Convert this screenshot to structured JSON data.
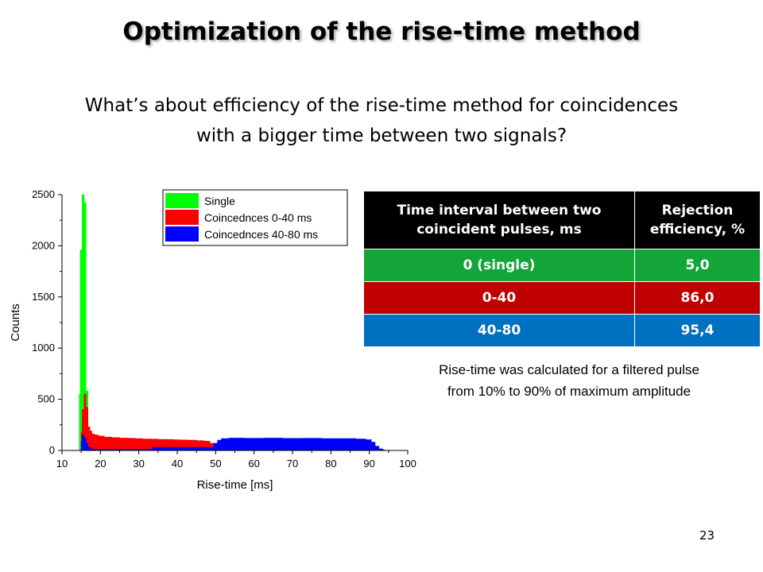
{
  "title": "Optimization of the rise-time method",
  "question": {
    "line1": "What’s about efficiency of the rise-time method for coincidences",
    "line2": "with a bigger time between two signals?"
  },
  "table": {
    "header": [
      "Time interval between two coincident pulses, ms",
      "Rejection efficiency, %"
    ],
    "rows": [
      {
        "interval": "0 (single)",
        "efficiency": "5,0",
        "color": "#13a538"
      },
      {
        "interval": "0-40",
        "efficiency": "86,0",
        "color": "#c00000"
      },
      {
        "interval": "40-80",
        "efficiency": "95,4",
        "color": "#0070c0"
      }
    ]
  },
  "note": {
    "line1": "Rise-time was calculated for a filtered pulse",
    "line2": "from 10% to 90% of maximum amplitude"
  },
  "page_number": "23",
  "chart_data": {
    "type": "bar",
    "xlabel": "Rise-time [ms]",
    "ylabel": "Counts",
    "xlim": [
      10,
      100
    ],
    "ylim": [
      0,
      2500
    ],
    "xticks": [
      10,
      20,
      30,
      40,
      50,
      60,
      70,
      80,
      90,
      100
    ],
    "yticks": [
      0,
      500,
      1000,
      1500,
      2000,
      2500
    ],
    "grid": false,
    "legend": "top-right",
    "series": [
      {
        "name": "Single",
        "color": "#00ff00",
        "x": [
          14.5,
          15,
          15.5,
          16,
          16.5,
          17,
          17.5
        ],
        "values": [
          550,
          1960,
          2500,
          2420,
          580,
          130,
          20
        ]
      },
      {
        "name": "Coincednces 0-40 ms",
        "color": "#ff0000",
        "x": [
          15,
          15.5,
          16,
          16.5,
          17,
          17.5,
          18,
          19,
          20,
          22,
          24,
          26,
          28,
          30,
          32,
          34,
          36,
          38,
          40,
          42,
          44,
          46,
          48,
          49,
          50,
          51
        ],
        "values": [
          180,
          400,
          550,
          420,
          230,
          190,
          160,
          150,
          140,
          130,
          125,
          120,
          118,
          115,
          112,
          110,
          108,
          106,
          104,
          102,
          100,
          95,
          90,
          70,
          30,
          10
        ]
      },
      {
        "name": "Coincednces 40-80 ms",
        "color": "#0000ff",
        "x": [
          15,
          15.5,
          16,
          16.5,
          17,
          18,
          49,
          50,
          51,
          52,
          55,
          60,
          65,
          70,
          75,
          80,
          85,
          88,
          90,
          91,
          92,
          93,
          94
        ],
        "values": [
          90,
          150,
          120,
          70,
          30,
          10,
          30,
          70,
          100,
          115,
          120,
          118,
          120,
          117,
          118,
          116,
          115,
          112,
          105,
          80,
          40,
          15,
          5
        ]
      }
    ]
  }
}
